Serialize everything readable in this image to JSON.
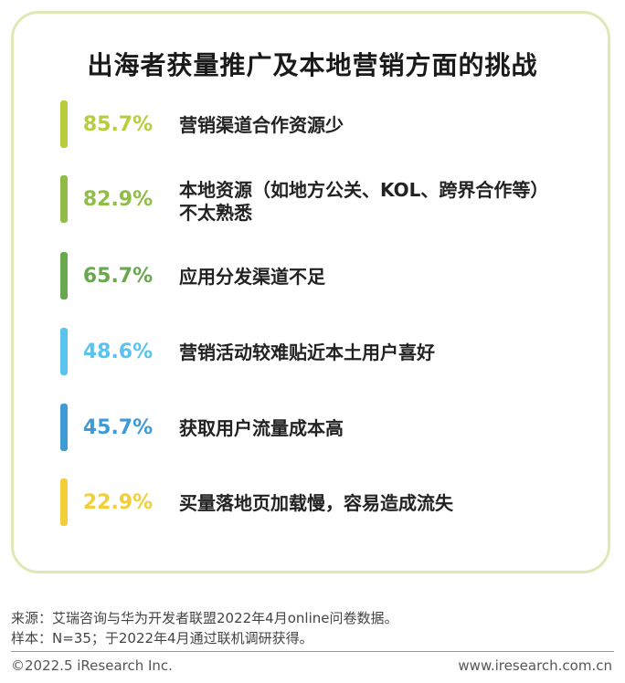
{
  "chart_data": {
    "type": "bar",
    "title": "出海者获量推广及本地营销方面的挑战",
    "categories": [
      "营销渠道合作资源少",
      "本地资源（如地方公关、KOL、跨界合作等）不太熟悉",
      "应用分发渠道不足",
      "营销活动较难贴近本土用户喜好",
      "获取用户流量成本高",
      "买量落地页加载慢，容易造成流失"
    ],
    "values": [
      85.7,
      82.9,
      65.7,
      48.6,
      45.7,
      22.9
    ],
    "value_labels": [
      "85.7%",
      "82.9%",
      "65.7%",
      "48.6%",
      "45.7%",
      "22.9%"
    ],
    "label_lines": [
      [
        "营销渠道合作资源少"
      ],
      [
        "本地资源（如地方公关、KOL、跨界合作等）",
        "不太熟悉"
      ],
      [
        "应用分发渠道不足"
      ],
      [
        "营销活动较难贴近本土用户喜好"
      ],
      [
        "获取用户流量成本高"
      ],
      [
        "买量落地页加载慢，容易造成流失"
      ]
    ],
    "colors": [
      "#b8cc3c",
      "#8fbd45",
      "#6aa84f",
      "#5bc4ee",
      "#3f9ad6",
      "#f3ce3b"
    ],
    "unit": "%"
  },
  "source_line1": "来源：艾瑞咨询与华为开发者联盟2022年4月online问卷数据。",
  "source_line2": "样本：N=35；于2022年4月通过联机调研获得。",
  "copyright": "©2022.5 iResearch Inc.",
  "website": "www.iresearch.com.cn"
}
